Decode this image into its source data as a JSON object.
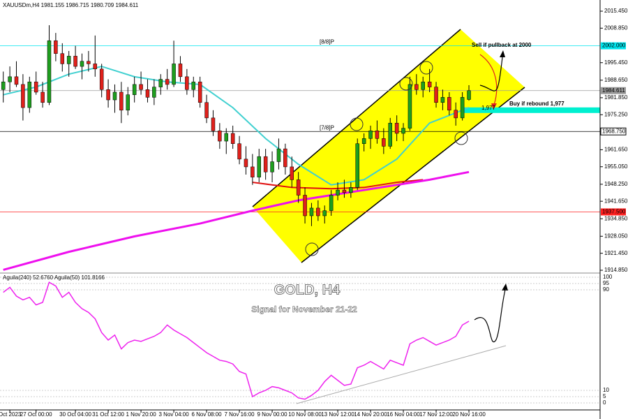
{
  "header": "XAUUSDm,H4  1981.155 1986.715 1980.709 1984.611",
  "title": "GOLD, H4",
  "subtitle": "Signal for November 21-22",
  "chart_data": [
    {
      "type": "candlestick",
      "ylim": [
        1914.85,
        2015.45
      ],
      "yticks": [
        {
          "value": 2015.45,
          "label": "2015.450"
        },
        {
          "value": 2008.85,
          "label": "2008.850"
        },
        {
          "value": 1995.45,
          "label": "1995.450"
        },
        {
          "value": 1988.65,
          "label": "1988.650"
        },
        {
          "value": 1981.85,
          "label": "1981.850"
        },
        {
          "value": 1975.25,
          "label": "1975.250"
        },
        {
          "value": 1961.65,
          "label": "1961.650"
        },
        {
          "value": 1955.05,
          "label": "1955.050"
        },
        {
          "value": 1948.25,
          "label": "1948.250"
        },
        {
          "value": 1941.65,
          "label": "1941.650"
        },
        {
          "value": 1934.85,
          "label": "1934.850"
        },
        {
          "value": 1928.05,
          "label": "1928.050"
        },
        {
          "value": 1921.45,
          "label": "1921.450"
        },
        {
          "value": 1914.85,
          "label": "1914.850"
        }
      ],
      "xlim": [
        -0.5,
        91
      ],
      "xticks": [
        {
          "value": 1,
          "label": "Oct 2023"
        },
        {
          "value": 5,
          "label": "27 Oct 00:00"
        },
        {
          "value": 11,
          "label": "30 Oct 04:00"
        },
        {
          "value": 16,
          "label": "31 Oct 12:00"
        },
        {
          "value": 21,
          "label": "1 Nov 20:00"
        },
        {
          "value": 26,
          "label": "3 Nov 04:00"
        },
        {
          "value": 31,
          "label": "6 Nov 08:00"
        },
        {
          "value": 36,
          "label": "7 Nov 16:00"
        },
        {
          "value": 41,
          "label": "9 Nov 00:00"
        },
        {
          "value": 46,
          "label": "10 Nov 08:00"
        },
        {
          "value": 51,
          "label": "13 Nov 12:00"
        },
        {
          "value": 56,
          "label": "14 Nov 20:00"
        },
        {
          "value": 61,
          "label": "16 Nov 04:00"
        },
        {
          "value": 66,
          "label": "17 Nov 12:00"
        },
        {
          "value": 71,
          "label": "20 Nov 16:00"
        }
      ],
      "up_color": "#1e9e1e",
      "down_color": "#e0201b",
      "wick_color": "#000000",
      "candles": [
        [
          1985,
          1992,
          1980,
          1988
        ],
        [
          1988,
          1994,
          1984,
          1990
        ],
        [
          1990,
          1996,
          1986,
          1987
        ],
        [
          1987,
          1991,
          1973,
          1978
        ],
        [
          1978,
          1990,
          1976,
          1988
        ],
        [
          1988,
          1992,
          1983,
          1984
        ],
        [
          1984,
          1988,
          1978,
          1980
        ],
        [
          1980,
          2010,
          1979,
          2004
        ],
        [
          2004,
          2007,
          1996,
          1999
        ],
        [
          1999,
          2003,
          1992,
          1995
        ],
        [
          1995,
          2000,
          1990,
          1998
        ],
        [
          1998,
          2002,
          1993,
          1994
        ],
        [
          1994,
          1999,
          1989,
          1996
        ],
        [
          1996,
          2000,
          1992,
          1995
        ],
        [
          1995,
          2006,
          1990,
          1993
        ],
        [
          1993,
          1995,
          1982,
          1985
        ],
        [
          1985,
          1989,
          1978,
          1981
        ],
        [
          1981,
          1987,
          1976,
          1984
        ],
        [
          1984,
          1988,
          1972,
          1977
        ],
        [
          1977,
          1986,
          1975,
          1983
        ],
        [
          1983,
          1990,
          1980,
          1987
        ],
        [
          1987,
          1992,
          1983,
          1985
        ],
        [
          1985,
          1989,
          1980,
          1982
        ],
        [
          1982,
          1989,
          1979,
          1986
        ],
        [
          1986,
          1991,
          1983,
          1989
        ],
        [
          1989,
          1993,
          1985,
          1987
        ],
        [
          1987,
          2004,
          1986,
          1995
        ],
        [
          1995,
          1998,
          1988,
          1990
        ],
        [
          1990,
          1993,
          1983,
          1985
        ],
        [
          1985,
          1990,
          1982,
          1988
        ],
        [
          1988,
          1990,
          1978,
          1980
        ],
        [
          1980,
          1983,
          1972,
          1974
        ],
        [
          1974,
          1977,
          1967,
          1969
        ],
        [
          1969,
          1972,
          1962,
          1965
        ],
        [
          1965,
          1970,
          1960,
          1968
        ],
        [
          1968,
          1971,
          1962,
          1964
        ],
        [
          1964,
          1967,
          1956,
          1958
        ],
        [
          1958,
          1963,
          1952,
          1955
        ],
        [
          1955,
          1960,
          1948,
          1951
        ],
        [
          1951,
          1962,
          1949,
          1959
        ],
        [
          1959,
          1962,
          1950,
          1953
        ],
        [
          1953,
          1961,
          1949,
          1957
        ],
        [
          1957,
          1966,
          1954,
          1962
        ],
        [
          1962,
          1964,
          1952,
          1955
        ],
        [
          1955,
          1959,
          1947,
          1950
        ],
        [
          1950,
          1953,
          1941,
          1944
        ],
        [
          1944,
          1947,
          1933,
          1936
        ],
        [
          1936,
          1941,
          1932,
          1939
        ],
        [
          1939,
          1942,
          1934,
          1936
        ],
        [
          1936,
          1940,
          1933,
          1938
        ],
        [
          1938,
          1946,
          1936,
          1944
        ],
        [
          1944,
          1949,
          1942,
          1946
        ],
        [
          1946,
          1950,
          1943,
          1945
        ],
        [
          1945,
          1949,
          1943,
          1947
        ],
        [
          1947,
          1966,
          1946,
          1964
        ],
        [
          1964,
          1968,
          1961,
          1966
        ],
        [
          1966,
          1971,
          1962,
          1969
        ],
        [
          1969,
          1973,
          1964,
          1966
        ],
        [
          1966,
          1970,
          1960,
          1963
        ],
        [
          1963,
          1974,
          1962,
          1972
        ],
        [
          1972,
          1975,
          1965,
          1968
        ],
        [
          1968,
          1972,
          1965,
          1970
        ],
        [
          1970,
          1990,
          1969,
          1987
        ],
        [
          1987,
          1991,
          1983,
          1985
        ],
        [
          1985,
          1990,
          1982,
          1988
        ],
        [
          1988,
          1993,
          1984,
          1986
        ],
        [
          1986,
          1988,
          1978,
          1980
        ],
        [
          1980,
          1985,
          1977,
          1982
        ],
        [
          1982,
          1984,
          1975,
          1977
        ],
        [
          1977,
          1980,
          1971,
          1974
        ],
        [
          1974,
          1984,
          1973,
          1982
        ],
        [
          1981.155,
          1986.715,
          1980.709,
          1984.611
        ]
      ],
      "lines": [
        {
          "color": "#40d0d0",
          "x": [
            0,
            5,
            10,
            15,
            20,
            25,
            30,
            35,
            40,
            45,
            50,
            55,
            60,
            65,
            71
          ],
          "values": [
            1983,
            1986,
            1991,
            1994,
            1990,
            1988,
            1987,
            1978,
            1966,
            1956,
            1948,
            1950,
            1958,
            1972,
            1978
          ]
        },
        {
          "color": "#e01010",
          "x": [
            38,
            44,
            50,
            55,
            60,
            64
          ],
          "values": [
            1949,
            1947,
            1946.5,
            1947,
            1949,
            1950
          ]
        },
        {
          "color": "#ee10ee",
          "x": [
            0,
            10,
            20,
            30,
            38,
            45,
            55,
            65,
            71
          ],
          "values": [
            1915,
            1922,
            1928,
            1933,
            1938,
            1942,
            1946,
            1950,
            1953
          ]
        }
      ],
      "levels": [
        {
          "value": 2002,
          "label": "2002.000",
          "tag": "[8/8]P",
          "color": "#00e5ee"
        },
        {
          "value": 1984.611,
          "label": "1984.611",
          "color": "#9a9a9a"
        },
        {
          "value": 1968.75,
          "label": "1968.750",
          "tag": "[7/8]P",
          "color": "#000000"
        },
        {
          "value": 1937.5,
          "label": "1937.500",
          "color": "#ff2020"
        }
      ],
      "buy_level": {
        "value": 1977,
        "label": "1,977",
        "color": "#00f0d0"
      },
      "annotations": [
        "Sell if pullback at 2000",
        "Buy if rebound 1,977"
      ]
    },
    {
      "type": "line",
      "header": "Aguila(240) 52.6760  Aguila(50) 101.8166",
      "ylim": [
        0,
        100
      ],
      "yticks": [
        0,
        5,
        10,
        90,
        95,
        100
      ],
      "color": "#ee22ee",
      "values": [
        88,
        92,
        85,
        82,
        84,
        78,
        80,
        96,
        93,
        84,
        88,
        80,
        75,
        72,
        67,
        56,
        50,
        54,
        43,
        48,
        50,
        49,
        51,
        53,
        56,
        62,
        58,
        55,
        52,
        48,
        44,
        40,
        37,
        34,
        33,
        31,
        25,
        23,
        5,
        8,
        10,
        13,
        12,
        10,
        8,
        4,
        3,
        6,
        10,
        17,
        22,
        18,
        14,
        15,
        28,
        30,
        33,
        30,
        27,
        34,
        32,
        30,
        47,
        50,
        52,
        49,
        46,
        48,
        50,
        53,
        62,
        65
      ]
    }
  ]
}
